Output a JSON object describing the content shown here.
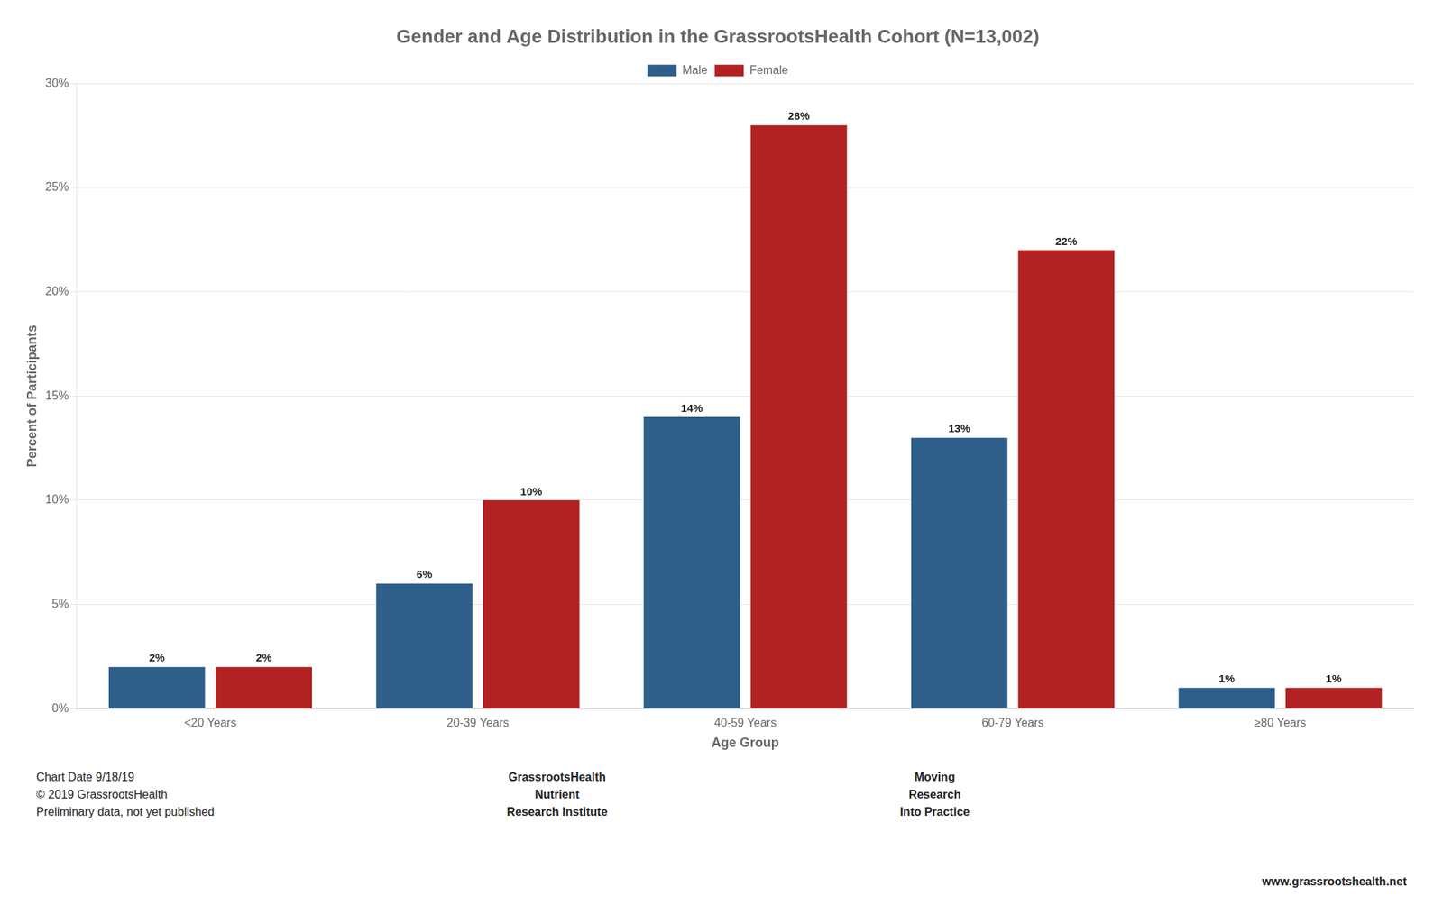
{
  "chart_data": {
    "type": "bar",
    "title": "Gender and Age Distribution in the GrassrootsHealth Cohort (N=13,002)",
    "categories": [
      "<20 Years",
      "20-39 Years",
      "40-59 Years",
      "60-79 Years",
      "≥80 Years"
    ],
    "series": [
      {
        "name": "Male",
        "color": "#2E5F8A",
        "values": [
          2,
          6,
          14,
          13,
          1
        ],
        "value_labels": [
          "2%",
          "6%",
          "14%",
          "13%",
          "1%"
        ]
      },
      {
        "name": "Female",
        "color": "#B22222",
        "values": [
          2,
          10,
          28,
          22,
          1
        ],
        "value_labels": [
          "2%",
          "10%",
          "28%",
          "22%",
          "1%"
        ]
      }
    ],
    "xlabel": "Age Group",
    "ylabel": "Percent of Participants",
    "ylim": [
      0,
      30
    ],
    "yticks": [
      {
        "value": 0,
        "label": "0%"
      },
      {
        "value": 5,
        "label": "5%"
      },
      {
        "value": 10,
        "label": "10%"
      },
      {
        "value": 15,
        "label": "15%"
      },
      {
        "value": 20,
        "label": "20%"
      },
      {
        "value": 25,
        "label": "25%"
      },
      {
        "value": 30,
        "label": "30%"
      }
    ],
    "grid": true,
    "legend": "top",
    "data_labels": true,
    "annotations": [
      "Chart Date 9/18/19\n© 2019 GrassrootsHealth\nPreliminary data, not yet published",
      "GrassrootsHealth\nNutrient\nResearch Institute",
      "Moving\nResearch\nInto Practice",
      "www.grassrootshealth.net"
    ]
  }
}
